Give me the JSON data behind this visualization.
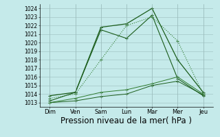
{
  "x_labels": [
    "Dim",
    "Ven",
    "Sam",
    "Lun",
    "Mar",
    "Mer",
    "Jeu"
  ],
  "x_values": [
    0,
    1,
    2,
    3,
    4,
    5,
    6
  ],
  "line_peak1": [
    1013.8,
    1014.2,
    1021.8,
    1022.2,
    1024.0,
    1018.0,
    1014.2
  ],
  "line_peak2": [
    1013.2,
    1014.2,
    1021.5,
    1020.5,
    1023.2,
    1015.8,
    1013.8
  ],
  "line_peak3": [
    1013.5,
    1014.0,
    1018.0,
    1022.0,
    1023.0,
    1020.2,
    1014.0
  ],
  "line_flat1": [
    1013.0,
    1013.5,
    1014.2,
    1014.5,
    1015.2,
    1016.0,
    1014.0
  ],
  "line_flat2": [
    1013.0,
    1013.2,
    1013.7,
    1014.0,
    1015.0,
    1015.5,
    1013.9
  ],
  "ylim": [
    1012.5,
    1024.5
  ],
  "yticks": [
    1013,
    1014,
    1015,
    1016,
    1017,
    1018,
    1019,
    1020,
    1021,
    1022,
    1023,
    1024
  ],
  "bg_color": "#c5eaea",
  "grid_color": "#9bbcbc",
  "line_color_dark": "#1a5c1a",
  "line_color_mid": "#2d7a2d",
  "xlabel": "Pression niveau de la mer( hPa )",
  "xlabel_fontsize": 8.5
}
